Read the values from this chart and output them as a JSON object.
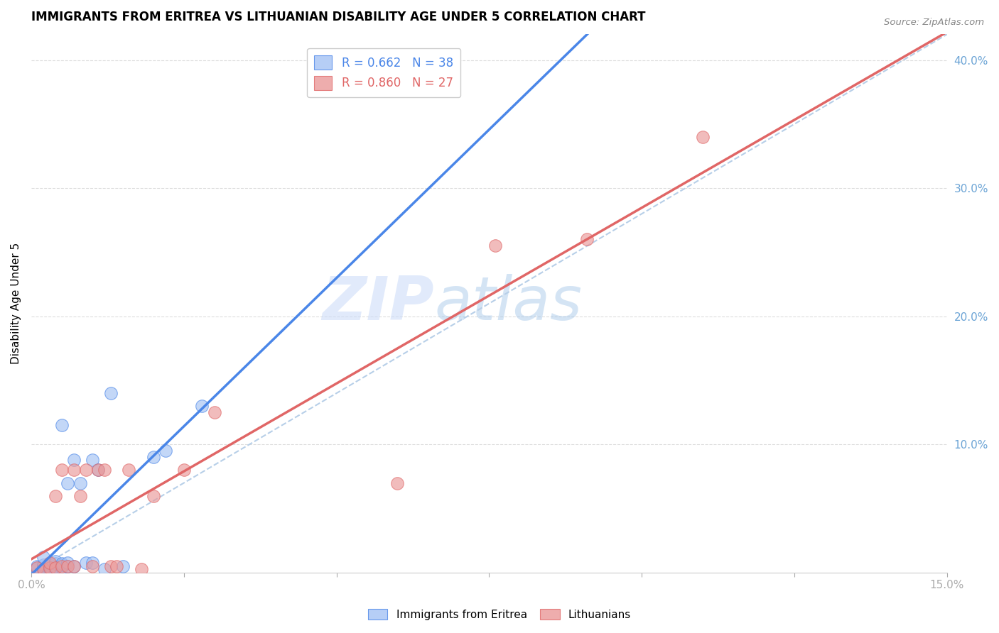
{
  "title": "IMMIGRANTS FROM ERITREA VS LITHUANIAN DISABILITY AGE UNDER 5 CORRELATION CHART",
  "source": "Source: ZipAtlas.com",
  "ylabel": "Disability Age Under 5",
  "xlim": [
    0.0,
    0.15
  ],
  "ylim": [
    0.0,
    0.42
  ],
  "xticks": [
    0.0,
    0.025,
    0.05,
    0.075,
    0.1,
    0.125,
    0.15
  ],
  "yticks_right": [
    0.1,
    0.2,
    0.3,
    0.4
  ],
  "blue_color": "#a4c2f4",
  "pink_color": "#ea9999",
  "line_blue": "#4a86e8",
  "line_pink": "#e06666",
  "dashed_color": "#b7cfe8",
  "tick_color": "#6aa3d5",
  "watermark_zip": "ZIP",
  "watermark_atlas": "atlas",
  "legend_r1": "0.662",
  "legend_n1": "38",
  "legend_r2": "0.860",
  "legend_n2": "27",
  "blue_scatter_x": [
    0.001,
    0.001,
    0.001,
    0.001,
    0.002,
    0.002,
    0.002,
    0.002,
    0.002,
    0.003,
    0.003,
    0.003,
    0.003,
    0.003,
    0.004,
    0.004,
    0.004,
    0.004,
    0.005,
    0.005,
    0.005,
    0.005,
    0.006,
    0.006,
    0.006,
    0.007,
    0.007,
    0.008,
    0.009,
    0.01,
    0.01,
    0.011,
    0.012,
    0.013,
    0.015,
    0.02,
    0.022,
    0.028
  ],
  "blue_scatter_y": [
    0.002,
    0.003,
    0.004,
    0.005,
    0.003,
    0.004,
    0.005,
    0.006,
    0.012,
    0.003,
    0.004,
    0.005,
    0.006,
    0.007,
    0.004,
    0.005,
    0.007,
    0.009,
    0.004,
    0.006,
    0.007,
    0.115,
    0.005,
    0.07,
    0.008,
    0.005,
    0.088,
    0.07,
    0.008,
    0.008,
    0.088,
    0.08,
    0.003,
    0.14,
    0.005,
    0.09,
    0.095,
    0.13
  ],
  "pink_scatter_x": [
    0.001,
    0.002,
    0.003,
    0.003,
    0.004,
    0.004,
    0.005,
    0.005,
    0.006,
    0.007,
    0.007,
    0.008,
    0.009,
    0.01,
    0.011,
    0.012,
    0.013,
    0.014,
    0.016,
    0.018,
    0.02,
    0.025,
    0.03,
    0.06,
    0.076,
    0.091,
    0.11
  ],
  "pink_scatter_y": [
    0.004,
    0.003,
    0.004,
    0.008,
    0.004,
    0.06,
    0.005,
    0.08,
    0.005,
    0.005,
    0.08,
    0.06,
    0.08,
    0.005,
    0.08,
    0.08,
    0.005,
    0.005,
    0.08,
    0.003,
    0.06,
    0.08,
    0.125,
    0.07,
    0.255,
    0.26,
    0.34
  ]
}
